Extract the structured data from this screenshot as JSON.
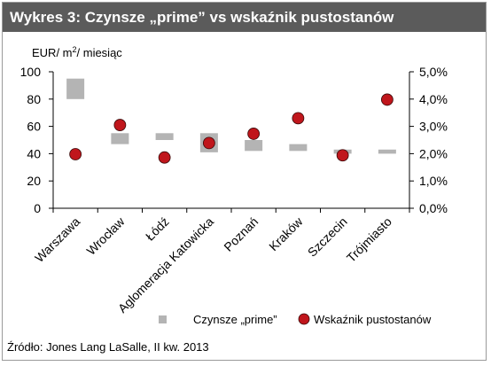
{
  "header": {
    "title": "Wykres 3: Czynsze „prime” vs wskaźnik pustostanów"
  },
  "chart_data": {
    "type": "bar",
    "unit_label": "EUR/ m²/ miesiąc",
    "categories": [
      "Warszawa",
      "Wrocław",
      "Łódź",
      "Aglomeracja Katowicka",
      "Poznań",
      "Kraków",
      "Szczecin",
      "Trójmiasto"
    ],
    "series": [
      {
        "name": "Czynsze „prime”",
        "kind": "floating-bar",
        "axis": "left",
        "low": [
          80,
          47,
          50,
          41,
          42,
          42,
          40,
          40
        ],
        "high": [
          95,
          55,
          55,
          55,
          50,
          47,
          43,
          43
        ],
        "color": "#b4b4b4"
      },
      {
        "name": "Wskaźnik pustostanów",
        "kind": "marker",
        "axis": "right",
        "values": [
          1.98,
          3.05,
          1.86,
          2.39,
          2.73,
          3.3,
          1.94,
          3.98
        ],
        "color": "#c0161c"
      }
    ],
    "y_left": {
      "ticks": [
        "0",
        "20",
        "40",
        "60",
        "80",
        "100"
      ],
      "ylim": [
        0,
        100
      ]
    },
    "y_right": {
      "ticks": [
        "0,0%",
        "1,0%",
        "2,0%",
        "3,0%",
        "4,0%",
        "5,0%"
      ],
      "ylim": [
        0,
        5
      ]
    },
    "grid": false,
    "legend_position": "bottom"
  },
  "source": "Źródło: Jones Lang LaSalle, II kw. 2013"
}
